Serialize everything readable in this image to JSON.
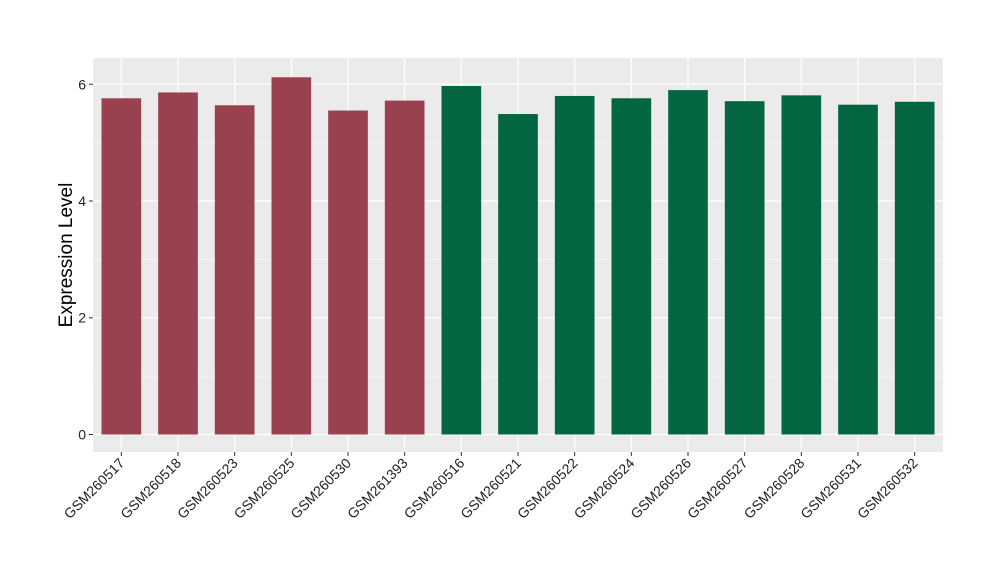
{
  "chart_data": {
    "type": "bar",
    "ylabel": "Expression Level",
    "xlabel": "",
    "categories": [
      "GSM260517",
      "GSM260518",
      "GSM260523",
      "GSM260525",
      "GSM260530",
      "GSM261393",
      "GSM260516",
      "GSM260521",
      "GSM260522",
      "GSM260524",
      "GSM260526",
      "GSM260527",
      "GSM260528",
      "GSM260531",
      "GSM260532"
    ],
    "values": [
      5.76,
      5.86,
      5.64,
      6.12,
      5.55,
      5.72,
      5.97,
      5.49,
      5.8,
      5.76,
      5.9,
      5.71,
      5.81,
      5.65,
      5.7
    ],
    "groups": [
      "a",
      "a",
      "a",
      "a",
      "a",
      "a",
      "b",
      "b",
      "b",
      "b",
      "b",
      "b",
      "b",
      "b",
      "b"
    ],
    "group_colors": {
      "a": "#99414f",
      "b": "#036640"
    },
    "ylim": [
      -0.3,
      6.45
    ],
    "yticks": [
      0,
      2,
      4,
      6
    ],
    "grid": true,
    "panel_background": "#ebebeb",
    "legend": "none"
  }
}
